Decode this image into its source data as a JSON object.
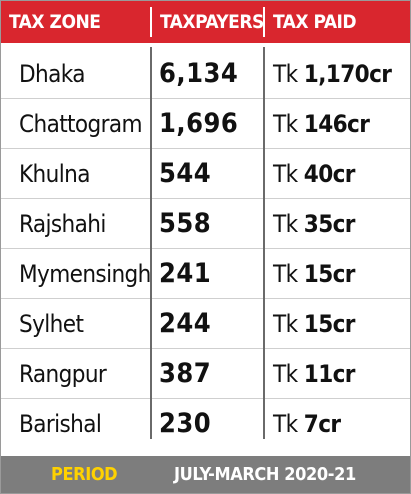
{
  "header": [
    "TAX ZONE",
    "TAXPAYERS",
    "TAX PAID"
  ],
  "rows": [
    [
      "Dhaka",
      "6,134",
      "Tk",
      "1,170cr"
    ],
    [
      "Chattogram",
      "1,696",
      "Tk",
      "146cr"
    ],
    [
      "Khulna",
      "544",
      "Tk",
      "40cr"
    ],
    [
      "Rajshahi",
      "558",
      "Tk",
      "35cr"
    ],
    [
      "Mymensingh",
      "241",
      "Tk",
      "15cr"
    ],
    [
      "Sylhet",
      "244",
      "Tk",
      "15cr"
    ],
    [
      "Rangpur",
      "387",
      "Tk",
      "11cr"
    ],
    [
      "Barishal",
      "230",
      "Tk",
      "7cr"
    ]
  ],
  "footer": {
    "label": "PERIOD",
    "value": "JULY-MARCH 2020-21"
  }
}
